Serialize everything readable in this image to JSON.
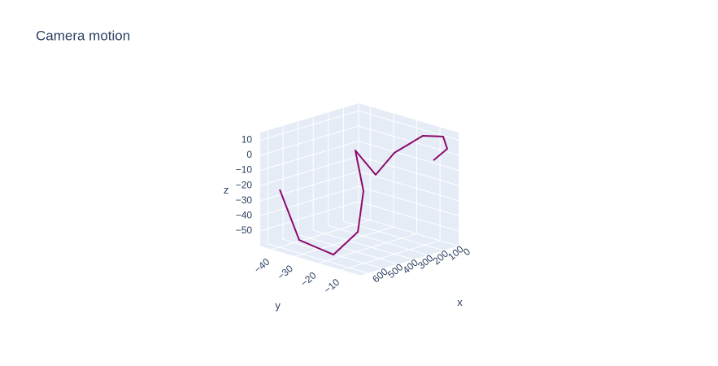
{
  "chart_data": {
    "type": "line3d",
    "title": "Camera motion",
    "x_title": "x",
    "y_title": "y",
    "z_title": "z",
    "color": "#8c0a6c",
    "x": [
      600,
      580,
      600,
      500,
      400,
      300,
      250,
      180,
      100,
      50,
      20,
      0
    ],
    "y": [
      -39.9,
      -32.8,
      -16.8,
      -12.8,
      -16.9,
      -26.9,
      -21.4,
      -17.9,
      -10.9,
      -5.4,
      -5.6,
      -12.8
    ],
    "z": [
      -21.8,
      -52.6,
      -54.5,
      -40.6,
      -18.5,
      0.9,
      -14.2,
      -0.2,
      11.8,
      12.3,
      3.2,
      -8.2
    ],
    "xlim": [
      0,
      650
    ],
    "ylim": [
      -45,
      -2
    ],
    "zlim": [
      -60,
      15
    ],
    "xticks": [
      0,
      100,
      200,
      300,
      400,
      500,
      600
    ],
    "yticks": [
      {
        "value": -40,
        "label": "−40"
      },
      {
        "value": -30,
        "label": "−30"
      },
      {
        "value": -20,
        "label": "−20"
      },
      {
        "value": -10,
        "label": "−10"
      }
    ],
    "zticks": [
      10,
      0,
      {
        "value": -10,
        "label": "−10"
      },
      {
        "value": -20,
        "label": "−20"
      },
      {
        "value": -30,
        "label": "−30"
      },
      {
        "value": -40,
        "label": "−40"
      },
      {
        "value": -50,
        "label": "−50"
      }
    ],
    "grid": true
  }
}
